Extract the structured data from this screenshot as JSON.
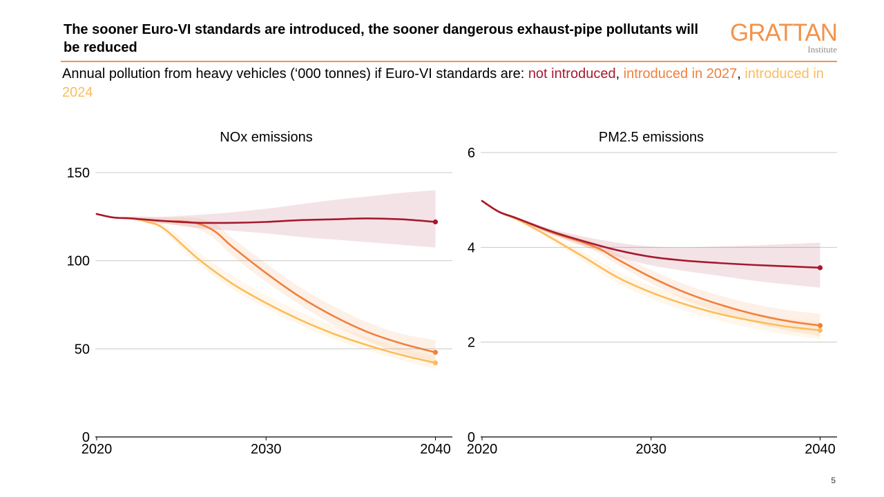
{
  "header": {
    "title": "The sooner Euro-VI standards are introduced, the sooner dangerous exhaust-pipe pollutants will be reduced",
    "logo": {
      "wordmark": "GRATTAN",
      "sub": "Institute"
    }
  },
  "subtitle": {
    "prefix": "Annual pollution from heavy vehicles (‘000 tonnes) if Euro-VI standards are: ",
    "s1": "not introduced",
    "sep1": ", ",
    "s2": "introduced in 2027",
    "sep2": ", ",
    "s3": "introduced in 2024"
  },
  "colors": {
    "not_introduced": "#a6192e",
    "introduced_2027": "#f0803c",
    "introduced_2024": "#fcbc5c",
    "gridline": "#c8c8c8",
    "accent_rule": "#f3924a"
  },
  "page_number": "5",
  "chart_data": [
    {
      "type": "line",
      "title": "NOx emissions",
      "xlabel": "",
      "ylabel": "",
      "xlim": [
        2020,
        2041
      ],
      "ylim": [
        0,
        150
      ],
      "xticks": [
        2020,
        2030,
        2040
      ],
      "yticks": [
        0,
        50,
        100,
        150
      ],
      "grid": true,
      "series": [
        {
          "key": "not_introduced",
          "x": [
            2020,
            2021,
            2022,
            2024,
            2026,
            2028,
            2030,
            2032,
            2034,
            2036,
            2038,
            2040
          ],
          "values": [
            126.5,
            124.5,
            124,
            122.5,
            121.5,
            121.5,
            122,
            123,
            123.5,
            124,
            123.5,
            122
          ],
          "band_low": [
            126.5,
            124.5,
            123.5,
            121,
            118.5,
            117,
            115.5,
            113.5,
            112,
            110.5,
            109,
            107.5
          ],
          "band_high": [
            126.5,
            124.5,
            125,
            125,
            126,
            127.5,
            129.5,
            132,
            134.5,
            136.5,
            138.5,
            140
          ]
        },
        {
          "key": "introduced_2027",
          "x": [
            2020,
            2021,
            2022,
            2024,
            2025,
            2026,
            2027,
            2028,
            2030,
            2032,
            2034,
            2036,
            2038,
            2040
          ],
          "values": [
            126.5,
            124.5,
            124,
            122.5,
            122.3,
            121,
            116.5,
            108,
            93,
            79.5,
            68.5,
            59.5,
            53,
            48
          ],
          "band_low": [
            126.5,
            124.5,
            123.5,
            121,
            120,
            118,
            112,
            103,
            88,
            75,
            63.5,
            54.5,
            47.5,
            42.5
          ],
          "band_high": [
            126.5,
            124.5,
            125,
            124.5,
            124.5,
            124,
            121,
            113,
            98.5,
            85,
            74,
            65,
            58.5,
            55
          ]
        },
        {
          "key": "introduced_2024",
          "x": [
            2020,
            2021,
            2022,
            2023,
            2024,
            2026,
            2028,
            2030,
            2032,
            2034,
            2036,
            2038,
            2040
          ],
          "values": [
            126.5,
            124.5,
            124,
            122,
            118,
            101,
            87,
            76,
            66.5,
            58.5,
            52,
            46.5,
            42
          ],
          "band_low": [
            126.5,
            124.5,
            123.5,
            121,
            116,
            98,
            84,
            73,
            63.5,
            55.5,
            49,
            43.5,
            38.5
          ],
          "band_high": [
            126.5,
            124.5,
            125,
            123.5,
            120.5,
            105,
            91.5,
            80.5,
            71,
            63,
            56.5,
            50.5,
            46
          ]
        }
      ]
    },
    {
      "type": "line",
      "title": "PM2.5 emissions",
      "xlabel": "",
      "ylabel": "",
      "xlim": [
        2020,
        2041
      ],
      "ylim": [
        0,
        6
      ],
      "xticks": [
        2020,
        2030,
        2040
      ],
      "yticks": [
        0,
        2,
        4,
        6
      ],
      "grid": true,
      "series": [
        {
          "key": "not_introduced",
          "x": [
            2020,
            2021,
            2022,
            2024,
            2026,
            2028,
            2030,
            2032,
            2034,
            2036,
            2038,
            2040
          ],
          "values": [
            4.98,
            4.75,
            4.62,
            4.35,
            4.13,
            3.94,
            3.8,
            3.72,
            3.67,
            3.63,
            3.6,
            3.57
          ],
          "band_low": [
            4.98,
            4.75,
            4.6,
            4.3,
            4.03,
            3.8,
            3.62,
            3.5,
            3.4,
            3.3,
            3.22,
            3.15
          ],
          "band_high": [
            4.98,
            4.75,
            4.64,
            4.4,
            4.23,
            4.1,
            4.02,
            4.0,
            4.02,
            4.04,
            4.07,
            4.1
          ]
        },
        {
          "key": "introduced_2027",
          "x": [
            2020,
            2021,
            2022,
            2024,
            2026,
            2027,
            2028,
            2030,
            2032,
            2034,
            2036,
            2038,
            2040
          ],
          "values": [
            4.98,
            4.75,
            4.62,
            4.33,
            4.1,
            3.96,
            3.75,
            3.37,
            3.05,
            2.8,
            2.6,
            2.45,
            2.35
          ],
          "band_low": [
            4.98,
            4.75,
            4.6,
            4.28,
            4.02,
            3.86,
            3.64,
            3.24,
            2.9,
            2.63,
            2.42,
            2.25,
            2.13
          ],
          "band_high": [
            4.98,
            4.75,
            4.64,
            4.38,
            4.18,
            4.06,
            3.87,
            3.52,
            3.22,
            2.99,
            2.81,
            2.68,
            2.6
          ]
        },
        {
          "key": "introduced_2024",
          "x": [
            2020,
            2021,
            2022,
            2023,
            2024,
            2026,
            2028,
            2030,
            2032,
            2034,
            2036,
            2038,
            2040
          ],
          "values": [
            4.98,
            4.75,
            4.6,
            4.42,
            4.22,
            3.8,
            3.37,
            3.05,
            2.8,
            2.6,
            2.45,
            2.33,
            2.25
          ],
          "band_low": [
            4.98,
            4.75,
            4.58,
            4.38,
            4.16,
            3.7,
            3.25,
            2.92,
            2.66,
            2.45,
            2.29,
            2.16,
            2.06
          ],
          "band_high": [
            4.98,
            4.75,
            4.62,
            4.46,
            4.28,
            3.9,
            3.5,
            3.19,
            2.95,
            2.76,
            2.62,
            2.5,
            2.42
          ]
        }
      ]
    }
  ]
}
